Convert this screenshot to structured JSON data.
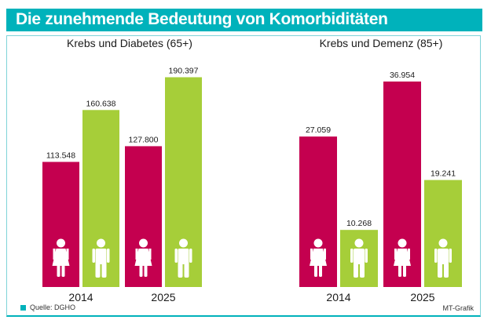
{
  "header": {
    "title": "Die zunehmende Bedeutung von Komorbiditäten"
  },
  "colors": {
    "header": "#00b2bb",
    "cancer": "#c4004f",
    "comorbidity": "#a6ce39"
  },
  "footer": {
    "source": "Quelle: DGHO",
    "credit": "MT-Grafik"
  },
  "chart_data": [
    {
      "type": "bar",
      "title": "Krebs und Diabetes (65+)",
      "categories": [
        "2014",
        "2025"
      ],
      "series": [
        {
          "name": "Krebs",
          "icon": "female-figure-icon",
          "color": "#c4004f",
          "values": [
            113548,
            127800
          ],
          "labels": [
            "113.548",
            "127.800"
          ]
        },
        {
          "name": "Diabetes",
          "icon": "male-figure-icon",
          "color": "#a6ce39",
          "values": [
            160638,
            190397
          ],
          "labels": [
            "160.638",
            "190.397"
          ]
        }
      ],
      "ylim": [
        0,
        200000
      ],
      "grid": false
    },
    {
      "type": "bar",
      "title": "Krebs und Demenz (85+)",
      "categories": [
        "2014",
        "2025"
      ],
      "series": [
        {
          "name": "Krebs",
          "icon": "female-figure-icon",
          "color": "#c4004f",
          "values": [
            27059,
            36954
          ],
          "labels": [
            "27.059",
            "36.954"
          ]
        },
        {
          "name": "Demenz",
          "icon": "male-figure-icon",
          "color": "#a6ce39",
          "values": [
            10268,
            19241
          ],
          "labels": [
            "10.268",
            "19.241"
          ]
        }
      ],
      "ylim": [
        0,
        38500
      ],
      "grid": false
    }
  ]
}
